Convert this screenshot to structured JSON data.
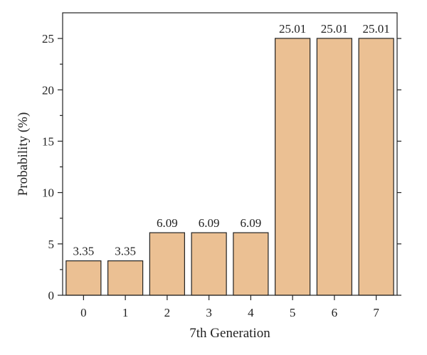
{
  "chart_data": {
    "type": "bar",
    "title": "",
    "xlabel": "7th Generation",
    "ylabel": "Probability (%)",
    "categories": [
      "0",
      "1",
      "2",
      "3",
      "4",
      "5",
      "6",
      "7"
    ],
    "values": [
      3.35,
      3.35,
      6.09,
      6.09,
      6.09,
      25.01,
      25.01,
      25.01
    ],
    "data_labels": [
      "3.35",
      "3.35",
      "6.09",
      "6.09",
      "6.09",
      "25.01",
      "25.01",
      "25.01"
    ],
    "ylim": [
      0,
      27.5
    ],
    "yticks": [
      0,
      5,
      10,
      15,
      20,
      25
    ],
    "ytick_labels": [
      "0",
      "5",
      "10",
      "15",
      "20",
      "25"
    ],
    "grid": false,
    "legend": "none",
    "colors": {
      "bar_fill": "#ebc093",
      "bar_stroke": "#222222",
      "axis": "#222222"
    }
  }
}
